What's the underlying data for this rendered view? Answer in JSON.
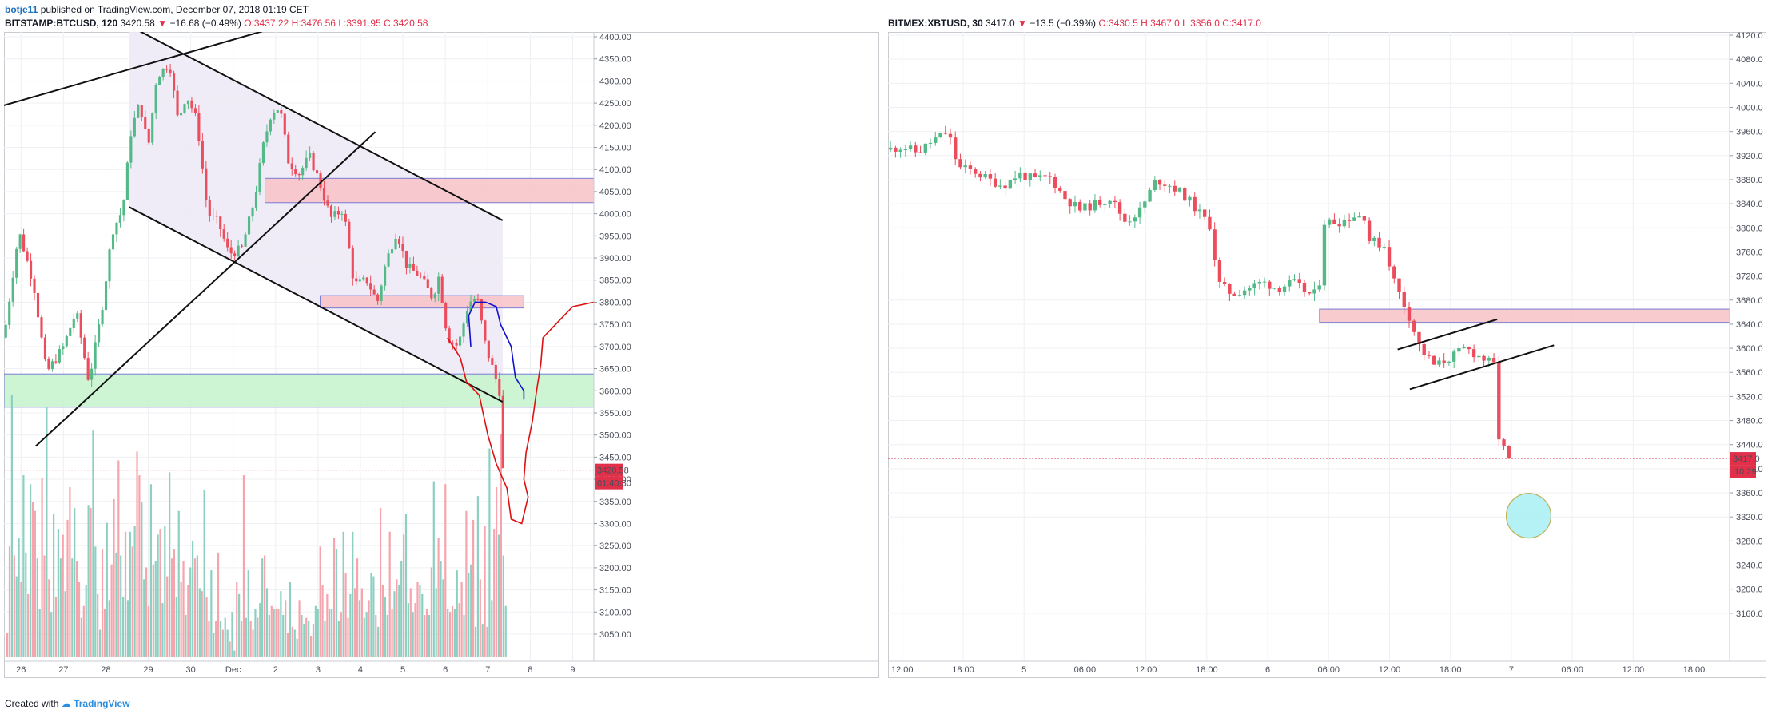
{
  "header": {
    "user": "botje11",
    "published": "published on TradingView.com, December 07, 2018 01:19 CET"
  },
  "footer": {
    "created_with": "Created with",
    "brand": "TradingView"
  },
  "colors": {
    "bull": "#53b987",
    "bear": "#eb4d5c",
    "vol_bull": "#8dd0c2",
    "vol_bear": "#f5a5ad",
    "resistance_zone": "#f8c6ca",
    "support_zone": "#c9f5cf",
    "channel_fill": "#eeeaf6",
    "price_line": "#e0304a",
    "projection_red": "#dd1111",
    "projection_blue": "#1111cc",
    "target_circle": "#a8f0f5"
  },
  "chart_data": [
    {
      "type": "candlestick",
      "title": {
        "symbol": "BITSTAMP:BTCUSD, 120",
        "last": "3420.58",
        "change": "−16.68 (−0.49%)",
        "open": "O:3437.22",
        "high": "H:3476.56",
        "low": "L:3391.95",
        "close": "C:3420.58"
      },
      "ylim": [
        3050,
        4400
      ],
      "y_ticks": [
        "3050.00",
        "3100.00",
        "3150.00",
        "3200.00",
        "3250.00",
        "3300.00",
        "3350.00",
        "3400.00",
        "3450.00",
        "3500.00",
        "3550.00",
        "3600.00",
        "3650.00",
        "3700.00",
        "3750.00",
        "3800.00",
        "3850.00",
        "3900.00",
        "3950.00",
        "4000.00",
        "4050.00",
        "4100.00",
        "4150.00",
        "4200.00",
        "4250.00",
        "4300.00",
        "4350.00",
        "4400.00"
      ],
      "x_ticks": [
        "26",
        "27",
        "28",
        "29",
        "30",
        "Dec",
        "2",
        "3",
        "4",
        "5",
        "6",
        "7",
        "8",
        "9"
      ],
      "x_range_days": [
        25.6,
        39.5
      ],
      "price_label": "3420.58",
      "countdown_label": "01:40:30",
      "ohlc_path": [
        [
          25.6,
          3720
        ],
        [
          25.95,
          3960
        ],
        [
          26.3,
          3840
        ],
        [
          26.6,
          3640
        ],
        [
          27.0,
          3700
        ],
        [
          27.3,
          3780
        ],
        [
          27.6,
          3620
        ],
        [
          27.9,
          3780
        ],
        [
          28.15,
          3960
        ],
        [
          28.4,
          4010
        ],
        [
          28.6,
          4190
        ],
        [
          28.8,
          4250
        ],
        [
          29.0,
          4150
        ],
        [
          29.2,
          4310
        ],
        [
          29.5,
          4340
        ],
        [
          29.7,
          4210
        ],
        [
          29.9,
          4270
        ],
        [
          30.15,
          4210
        ],
        [
          30.4,
          4000
        ],
        [
          30.65,
          3980
        ],
        [
          30.9,
          3910
        ],
        [
          31.2,
          3920
        ],
        [
          31.5,
          4030
        ],
        [
          31.7,
          4150
        ],
        [
          31.9,
          4230
        ],
        [
          32.1,
          4240
        ],
        [
          32.3,
          4120
        ],
        [
          32.55,
          4090
        ],
        [
          32.8,
          4130
        ],
        [
          33.0,
          4080
        ],
        [
          33.3,
          3990
        ],
        [
          33.6,
          4010
        ],
        [
          33.85,
          3840
        ],
        [
          34.15,
          3850
        ],
        [
          34.4,
          3800
        ],
        [
          34.6,
          3890
        ],
        [
          34.85,
          3960
        ],
        [
          35.1,
          3880
        ],
        [
          35.4,
          3860
        ],
        [
          35.7,
          3810
        ],
        [
          35.85,
          3860
        ],
        [
          36.05,
          3720
        ],
        [
          36.3,
          3700
        ],
        [
          36.55,
          3800
        ],
        [
          36.75,
          3810
        ],
        [
          36.95,
          3700
        ],
        [
          37.15,
          3640
        ],
        [
          37.3,
          3590
        ],
        [
          37.4,
          3425
        ]
      ],
      "volume_max": 100,
      "volumes": [
        8,
        37,
        88,
        34,
        27,
        40,
        25,
        61,
        35,
        21,
        58,
        52,
        49,
        33,
        16,
        60,
        34,
        84,
        26,
        15,
        48,
        20,
        43,
        33,
        41,
        22,
        46,
        57,
        33,
        50,
        32,
        25,
        13,
        17,
        24,
        51,
        50,
        76,
        37,
        21,
        9,
        36,
        16,
        45,
        19,
        31,
        53,
        35,
        66,
        34,
        20,
        42,
        19,
        42,
        37,
        44,
        69,
        61,
        52,
        26,
        30,
        17,
        58,
        31,
        32,
        41,
        43,
        18,
        44,
        27,
        62,
        33,
        36,
        20,
        49,
        25,
        32,
        14,
        24,
        30,
        39,
        33,
        34,
        23,
        22,
        56,
        20,
        12,
        29,
        8,
        12,
        35,
        12,
        9,
        13,
        9,
        5,
        15,
        2,
        25,
        21,
        12,
        61,
        13,
        29,
        12,
        9,
        16,
        13,
        18,
        33,
        34,
        23,
        14,
        17,
        16,
        16,
        16,
        22,
        14,
        19,
        8,
        25,
        10,
        9,
        6,
        19,
        14,
        11,
        13,
        12,
        7,
        11,
        17,
        16,
        37,
        24,
        12,
        21,
        16,
        16,
        40,
        36,
        12,
        15,
        42,
        28,
        13,
        21,
        42,
        23,
        33,
        19,
        23,
        13,
        15,
        19,
        28,
        27,
        14,
        10,
        50,
        24,
        20,
        14,
        42,
        16,
        22,
        26,
        24,
        32,
        41,
        48,
        18,
        23,
        15,
        18,
        25,
        24,
        21,
        14,
        16,
        14,
        30,
        59,
        23,
        40,
        32,
        26,
        58,
        16,
        15,
        17,
        16,
        29,
        18,
        25,
        14,
        49,
        28,
        31,
        46,
        10,
        54,
        26,
        11,
        44,
        10,
        70,
        19,
        43,
        57,
        41,
        75,
        34,
        17
      ],
      "zones": [
        {
          "kind": "resistance",
          "from_day": 31.75,
          "to_day": 39.5,
          "low": 4025,
          "high": 4080
        },
        {
          "kind": "resistance",
          "from_day": 33.05,
          "to_day": 37.85,
          "low": 3787,
          "high": 3815
        },
        {
          "kind": "support",
          "from_day": 25.6,
          "to_day": 39.5,
          "low": 3563,
          "high": 3638
        }
      ],
      "trendlines": [
        {
          "p1": [
            25.6,
            4245
          ],
          "p2": [
            32.15,
            4425
          ]
        },
        {
          "p1": [
            28.55,
            4425
          ],
          "p2": [
            37.35,
            3985
          ]
        },
        {
          "p1": [
            28.55,
            4015
          ],
          "p2": [
            37.35,
            3575
          ]
        },
        {
          "p1": [
            26.35,
            3475
          ],
          "p2": [
            34.35,
            4185
          ]
        }
      ],
      "channel": {
        "from_day": 28.55,
        "to_day": 37.35,
        "top": [
          4425,
          3985
        ],
        "bottom": [
          4015,
          3575
        ]
      },
      "projection_red": [
        [
          36.05,
          3720
        ],
        [
          36.35,
          3675
        ],
        [
          36.5,
          3620
        ],
        [
          36.8,
          3590
        ],
        [
          37.0,
          3500
        ],
        [
          37.2,
          3435
        ],
        [
          37.45,
          3380
        ],
        [
          37.55,
          3310
        ],
        [
          37.8,
          3300
        ],
        [
          37.95,
          3360
        ],
        [
          37.85,
          3400
        ],
        [
          37.9,
          3460
        ],
        [
          38.05,
          3530
        ],
        [
          38.15,
          3600
        ],
        [
          38.25,
          3660
        ],
        [
          38.3,
          3720
        ],
        [
          38.5,
          3740
        ],
        [
          38.7,
          3760
        ],
        [
          39.0,
          3790
        ],
        [
          39.5,
          3800
        ]
      ],
      "projection_blue": [
        [
          36.6,
          3700
        ],
        [
          36.55,
          3770
        ],
        [
          36.7,
          3800
        ],
        [
          36.95,
          3800
        ],
        [
          37.2,
          3790
        ],
        [
          37.3,
          3750
        ],
        [
          37.55,
          3700
        ],
        [
          37.65,
          3630
        ],
        [
          37.85,
          3600
        ],
        [
          37.85,
          3580
        ]
      ]
    },
    {
      "type": "candlestick",
      "title": {
        "symbol": "BITMEX:XBTUSD, 30",
        "last": "3417.0",
        "change": "−13.5 (−0.39%)",
        "open": "O:3430.5",
        "high": "H:3467.0",
        "low": "L:3356.0",
        "close": "C:3417.0"
      },
      "ylim": [
        3120,
        4120
      ],
      "y_ticks": [
        "3160.0",
        "3200.0",
        "3240.0",
        "3280.0",
        "3320.0",
        "3360.0",
        "3400.0",
        "3440.0",
        "3480.0",
        "3520.0",
        "3560.0",
        "3600.0",
        "3640.0",
        "3680.0",
        "3720.0",
        "3760.0",
        "3800.0",
        "3840.0",
        "3880.0",
        "3920.0",
        "3960.0",
        "4000.0",
        "4040.0",
        "4080.0",
        "4120.0"
      ],
      "x_ticks": [
        {
          "label": "12:00",
          "h": 12
        },
        {
          "label": "18:00",
          "h": 18
        },
        {
          "label": "5",
          "h": 24
        },
        {
          "label": "06:00",
          "h": 30
        },
        {
          "label": "12:00",
          "h": 36
        },
        {
          "label": "18:00",
          "h": 42
        },
        {
          "label": "6",
          "h": 48
        },
        {
          "label": "06:00",
          "h": 54
        },
        {
          "label": "12:00",
          "h": 60
        },
        {
          "label": "18:00",
          "h": 66
        },
        {
          "label": "7",
          "h": 72
        },
        {
          "label": "06:00",
          "h": 78
        },
        {
          "label": "12:00",
          "h": 84
        },
        {
          "label": "18:00",
          "h": 90
        }
      ],
      "x_range_hours": [
        10.6,
        93.5
      ],
      "price_label": "3417.0",
      "countdown_label": "10:29",
      "ohlc_path": [
        [
          10.6,
          3930
        ],
        [
          12.0,
          3935
        ],
        [
          13.5,
          3925
        ],
        [
          15.0,
          3945
        ],
        [
          16.5,
          3960
        ],
        [
          17.0,
          3930
        ],
        [
          17.5,
          3900
        ],
        [
          19.0,
          3895
        ],
        [
          20.5,
          3880
        ],
        [
          22.0,
          3870
        ],
        [
          23.5,
          3890
        ],
        [
          25.0,
          3880
        ],
        [
          26.5,
          3885
        ],
        [
          28.0,
          3850
        ],
        [
          29.5,
          3830
        ],
        [
          31.0,
          3840
        ],
        [
          32.5,
          3850
        ],
        [
          34.0,
          3810
        ],
        [
          35.5,
          3830
        ],
        [
          37.0,
          3880
        ],
        [
          38.5,
          3870
        ],
        [
          40.0,
          3850
        ],
        [
          41.5,
          3820
        ],
        [
          42.5,
          3800
        ],
        [
          43.0,
          3710
        ],
        [
          44.5,
          3690
        ],
        [
          46.0,
          3700
        ],
        [
          47.5,
          3710
        ],
        [
          49.0,
          3700
        ],
        [
          50.5,
          3710
        ],
        [
          52.0,
          3690
        ],
        [
          53.0,
          3690
        ],
        [
          53.5,
          3810
        ],
        [
          55.0,
          3810
        ],
        [
          56.5,
          3820
        ],
        [
          57.5,
          3820
        ],
        [
          58.0,
          3780
        ],
        [
          59.5,
          3770
        ],
        [
          60.5,
          3710
        ],
        [
          62.0,
          3650
        ],
        [
          63.0,
          3600
        ],
        [
          64.5,
          3570
        ],
        [
          65.5,
          3580
        ],
        [
          66.5,
          3590
        ],
        [
          67.5,
          3600
        ],
        [
          68.5,
          3590
        ],
        [
          69.5,
          3580
        ],
        [
          70.5,
          3570
        ],
        [
          70.8,
          3440
        ],
        [
          71.5,
          3430
        ],
        [
          72.0,
          3417
        ]
      ],
      "zones": [
        {
          "kind": "resistance",
          "from_hour": 53.1,
          "to_hour": 93.5,
          "low": 3643,
          "high": 3665
        }
      ],
      "trendlines": [
        {
          "p1": [
            60.8,
            3598
          ],
          "p2": [
            70.6,
            3648
          ]
        },
        {
          "p1": [
            62.0,
            3532
          ],
          "p2": [
            76.2,
            3605
          ]
        }
      ],
      "target_circle": {
        "hour": 73.7,
        "price": 3322,
        "radius_hours": 2.2
      }
    }
  ]
}
